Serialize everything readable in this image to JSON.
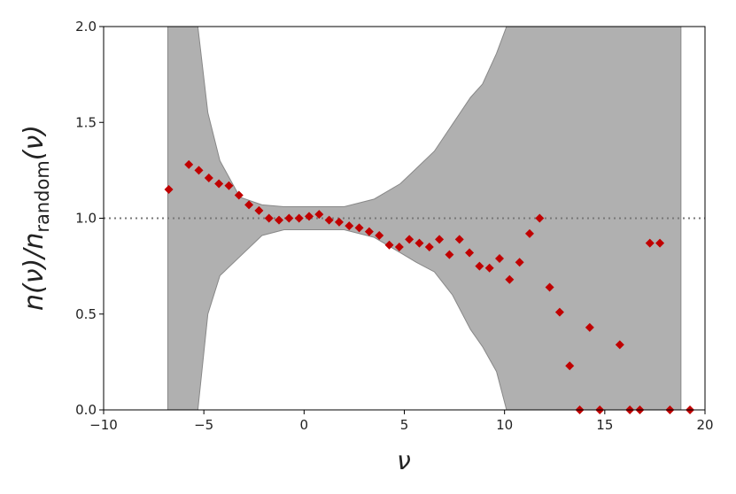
{
  "chart_data": {
    "type": "scatter",
    "xlabel": "ν",
    "ylabel": [
      "n(ν)/n",
      "random",
      "(ν)"
    ],
    "xlim": [
      -10,
      20
    ],
    "ylim": [
      0,
      2
    ],
    "xticks": [
      {
        "value": -10,
        "label": "−10"
      },
      {
        "value": -5,
        "label": "−5"
      },
      0,
      5,
      10,
      15,
      20
    ],
    "yticks": [
      {
        "value": 0,
        "label": "0.0"
      },
      0.5,
      {
        "value": 1,
        "label": "1.0"
      },
      1.5,
      {
        "value": 2,
        "label": "2.0"
      }
    ],
    "hline": 1.0,
    "band": {
      "color": "#b0b0b0",
      "x": [
        -6.8,
        -5.3,
        -4.8,
        -4.2,
        -3.2,
        -2.1,
        -1.0,
        2.0,
        3.5,
        4.8,
        5.6,
        6.5,
        7.4,
        8.3,
        8.9,
        9.6,
        10.1,
        18.8
      ],
      "upper": [
        2.0,
        2.0,
        1.55,
        1.3,
        1.11,
        1.07,
        1.06,
        1.06,
        1.1,
        1.18,
        1.26,
        1.35,
        1.49,
        1.63,
        1.7,
        1.86,
        2.0,
        2.0
      ],
      "lower": [
        0,
        0,
        0.5,
        0.7,
        0.8,
        0.91,
        0.94,
        0.94,
        0.9,
        0.82,
        0.77,
        0.72,
        0.6,
        0.42,
        0.33,
        0.2,
        0,
        0
      ]
    },
    "x": [
      -6.75,
      -5.75,
      -5.25,
      -4.75,
      -4.25,
      -3.75,
      -3.25,
      -2.75,
      -2.25,
      -1.75,
      -1.25,
      -0.75,
      -0.25,
      0.25,
      0.75,
      1.25,
      1.75,
      2.25,
      2.75,
      3.25,
      3.75,
      4.25,
      4.75,
      5.25,
      5.75,
      6.25,
      6.75,
      7.25,
      7.75,
      8.25,
      8.75,
      9.25,
      9.75,
      10.25,
      10.75,
      11.25,
      11.75,
      12.25,
      12.75,
      13.25,
      13.75,
      14.25,
      14.75,
      15.75,
      16.25,
      16.75,
      17.25,
      17.75,
      18.25,
      19.25
    ],
    "series": [
      {
        "color": "#c00000",
        "values": [
          1.15,
          1.28,
          1.25,
          1.21,
          1.18,
          1.17,
          1.12,
          1.07,
          1.04,
          1.0,
          0.99,
          1.0,
          1.0,
          1.01,
          1.02,
          0.99,
          0.98,
          0.96,
          0.95,
          0.93,
          0.91,
          0.86,
          0.85,
          0.89,
          0.87,
          0.85,
          0.89,
          0.81,
          0.89,
          0.82,
          0.75,
          0.74,
          0.79,
          0.68,
          0.77,
          0.92,
          1.0,
          0.64,
          0.51,
          0.23,
          0,
          0.43,
          0,
          0.34,
          0,
          0,
          0.87,
          0.87,
          0,
          0
        ]
      }
    ]
  }
}
